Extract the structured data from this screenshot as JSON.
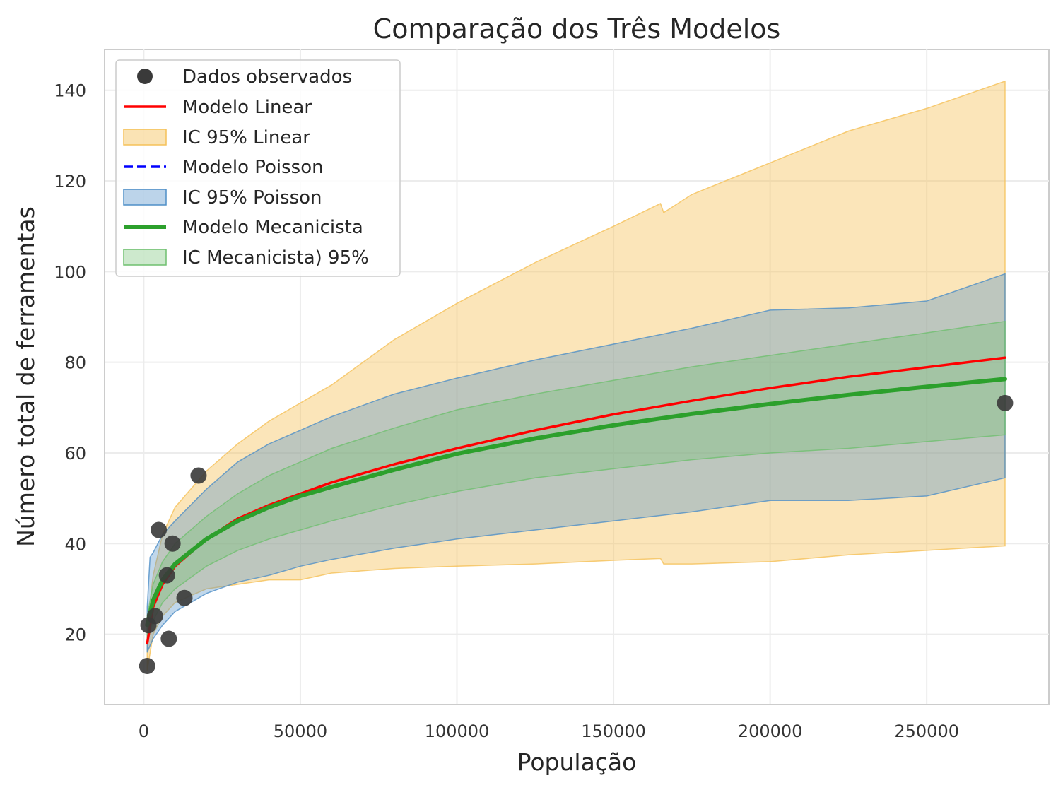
{
  "chart_data": {
    "type": "line",
    "title": "Comparação dos Três Modelos",
    "xlabel": "População",
    "ylabel": "Número total de ferramentas",
    "xlim": [
      -12500,
      289000
    ],
    "ylim": [
      4.5,
      149
    ],
    "xticks": [
      0,
      50000,
      100000,
      150000,
      200000,
      250000
    ],
    "yticks": [
      20,
      40,
      60,
      80,
      100,
      120,
      140
    ],
    "grid": true,
    "legend_position": "top-left",
    "colors": {
      "observed": "#3a3a3a",
      "linear": "#ff0000",
      "linear_ci": "#f5c158",
      "poisson": "#0000ff",
      "poisson_ci": "#4f8fc7",
      "mech": "#2ca02c",
      "mech_ci": "#6fbf6f"
    },
    "observed": {
      "name": "Dados observados",
      "x": [
        1100,
        1500,
        3600,
        4791,
        7400,
        8000,
        9200,
        13000,
        17500,
        275000
      ],
      "y": [
        13,
        22,
        24,
        43,
        33,
        19,
        40,
        28,
        55,
        71
      ]
    },
    "series": [
      {
        "name": "Modelo Linear",
        "key": "linear",
        "x": [
          1100,
          3000,
          6000,
          10000,
          20000,
          30000,
          40000,
          50000,
          60000,
          80000,
          100000,
          125000,
          150000,
          175000,
          200000,
          225000,
          250000,
          275000
        ],
        "y": [
          18,
          26,
          31,
          35,
          41,
          45.5,
          48.5,
          51,
          53.5,
          57.5,
          61,
          65,
          68.5,
          71.5,
          74.3,
          76.8,
          78.9,
          81
        ]
      },
      {
        "name": "Modelo Poisson",
        "key": "poisson",
        "x": [
          1100,
          3000,
          6000,
          10000,
          20000,
          30000,
          40000,
          50000,
          60000,
          80000,
          100000,
          125000,
          150000,
          175000,
          200000,
          225000,
          250000,
          275000
        ],
        "y": [
          22,
          27.5,
          32,
          35.5,
          41,
          45,
          48,
          50.5,
          52.5,
          56.3,
          59.8,
          63.2,
          66.1,
          68.6,
          70.8,
          72.8,
          74.6,
          76.3
        ]
      },
      {
        "name": "Modelo Mecanicista",
        "key": "mech",
        "x": [
          1100,
          3000,
          6000,
          10000,
          20000,
          30000,
          40000,
          50000,
          60000,
          80000,
          100000,
          125000,
          150000,
          175000,
          200000,
          225000,
          250000,
          275000
        ],
        "y": [
          22,
          27.5,
          32,
          35.5,
          41,
          45,
          48,
          50.5,
          52.5,
          56.3,
          59.8,
          63.2,
          66.1,
          68.6,
          70.8,
          72.8,
          74.6,
          76.3
        ]
      }
    ],
    "bands": [
      {
        "name": "IC 95% Linear",
        "key": "linear_ci",
        "x": [
          1100,
          3000,
          6000,
          10000,
          20000,
          30000,
          40000,
          50000,
          60000,
          80000,
          100000,
          125000,
          150000,
          165000,
          166000,
          175000,
          200000,
          225000,
          250000,
          275000
        ],
        "lower": [
          12,
          20,
          24,
          27,
          30,
          31,
          32,
          32,
          33.5,
          34.5,
          35,
          35.5,
          36.3,
          36.7,
          35.5,
          35.5,
          36,
          37.5,
          38.5,
          39.5
        ],
        "upper": [
          22,
          33,
          42,
          48,
          56,
          62,
          67,
          71,
          75,
          85,
          93,
          102,
          110,
          115,
          113,
          117,
          124,
          131,
          136,
          142
        ]
      },
      {
        "name": "IC 95% Poisson",
        "key": "poisson_ci",
        "x": [
          1100,
          2000,
          3000,
          6000,
          10000,
          20000,
          30000,
          40000,
          50000,
          60000,
          80000,
          100000,
          125000,
          150000,
          175000,
          200000,
          225000,
          250000,
          275000
        ],
        "lower": [
          16,
          17.5,
          19,
          22,
          25,
          29,
          31.5,
          33,
          35,
          36.5,
          39,
          41,
          43,
          45,
          47,
          49.5,
          49.5,
          50.5,
          54.5
        ],
        "upper": [
          26,
          37,
          38,
          42,
          45,
          52,
          58,
          62,
          65,
          68,
          73,
          76.5,
          80.5,
          84,
          87.5,
          91.5,
          92,
          93.5,
          99.5
        ]
      },
      {
        "name": "IC Mecanicista) 95%",
        "key": "mech_ci",
        "x": [
          1100,
          3000,
          6000,
          10000,
          20000,
          30000,
          40000,
          50000,
          60000,
          80000,
          100000,
          125000,
          150000,
          175000,
          200000,
          225000,
          250000,
          275000
        ],
        "lower": [
          18,
          23,
          27,
          30,
          35,
          38.5,
          41,
          43,
          45,
          48.5,
          51.5,
          54.5,
          56.5,
          58.5,
          60,
          61,
          62.5,
          64
        ],
        "upper": [
          24,
          31,
          36,
          40,
          46,
          51,
          55,
          58,
          61,
          65.5,
          69.5,
          73,
          76,
          79,
          81.5,
          84,
          86.5,
          89
        ]
      }
    ]
  }
}
